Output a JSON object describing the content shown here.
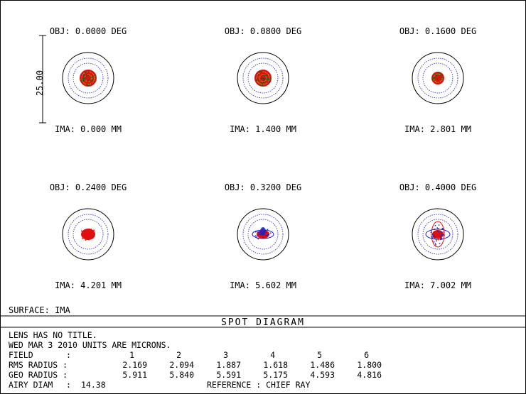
{
  "scale_bar": {
    "label": "25.00"
  },
  "spots": [
    {
      "obj": "OBJ: 0.0000 DEG",
      "ima": "IMA: 0.000 MM",
      "kind": "center"
    },
    {
      "obj": "OBJ: 0.0800 DEG",
      "ima": "IMA: 1.400 MM",
      "kind": "center"
    },
    {
      "obj": "OBJ: 0.1600 DEG",
      "ima": "IMA: 2.801 MM",
      "kind": "small"
    },
    {
      "obj": "OBJ: 0.2400 DEG",
      "ima": "IMA: 4.201 MM",
      "kind": "oval"
    },
    {
      "obj": "OBJ: 0.3200 DEG",
      "ima": "IMA: 5.602 MM",
      "kind": "wing"
    },
    {
      "obj": "OBJ: 0.4000 DEG",
      "ima": "IMA: 7.002 MM",
      "kind": "wing-tall"
    }
  ],
  "surface_label": "SURFACE: IMA",
  "title": "SPOT DIAGRAM",
  "info": {
    "line1": "LENS HAS NO TITLE.",
    "line2": "WED MAR 3 2010  UNITS ARE MICRONS.",
    "field_label": "FIELD",
    "field_values": [
      "1",
      "2",
      "3",
      "4",
      "5",
      "6"
    ],
    "rms_label": "RMS RADIUS :",
    "rms_values": [
      "2.169",
      "2.094",
      "1.887",
      "1.618",
      "1.486",
      "1.800"
    ],
    "geo_label": "GEO RADIUS :",
    "geo_values": [
      "5.911",
      "5.840",
      "5.591",
      "5.175",
      "4.593",
      "4.816"
    ],
    "airy_label": "AIRY DIAM",
    "airy_value": "14.38",
    "reference": "REFERENCE  : CHIEF RAY"
  },
  "colors": {
    "wave1": "#1a5c1a",
    "wave2": "#e01010",
    "wave3": "#2020c0",
    "wave4": "#b0b000",
    "outline": "#000000"
  }
}
